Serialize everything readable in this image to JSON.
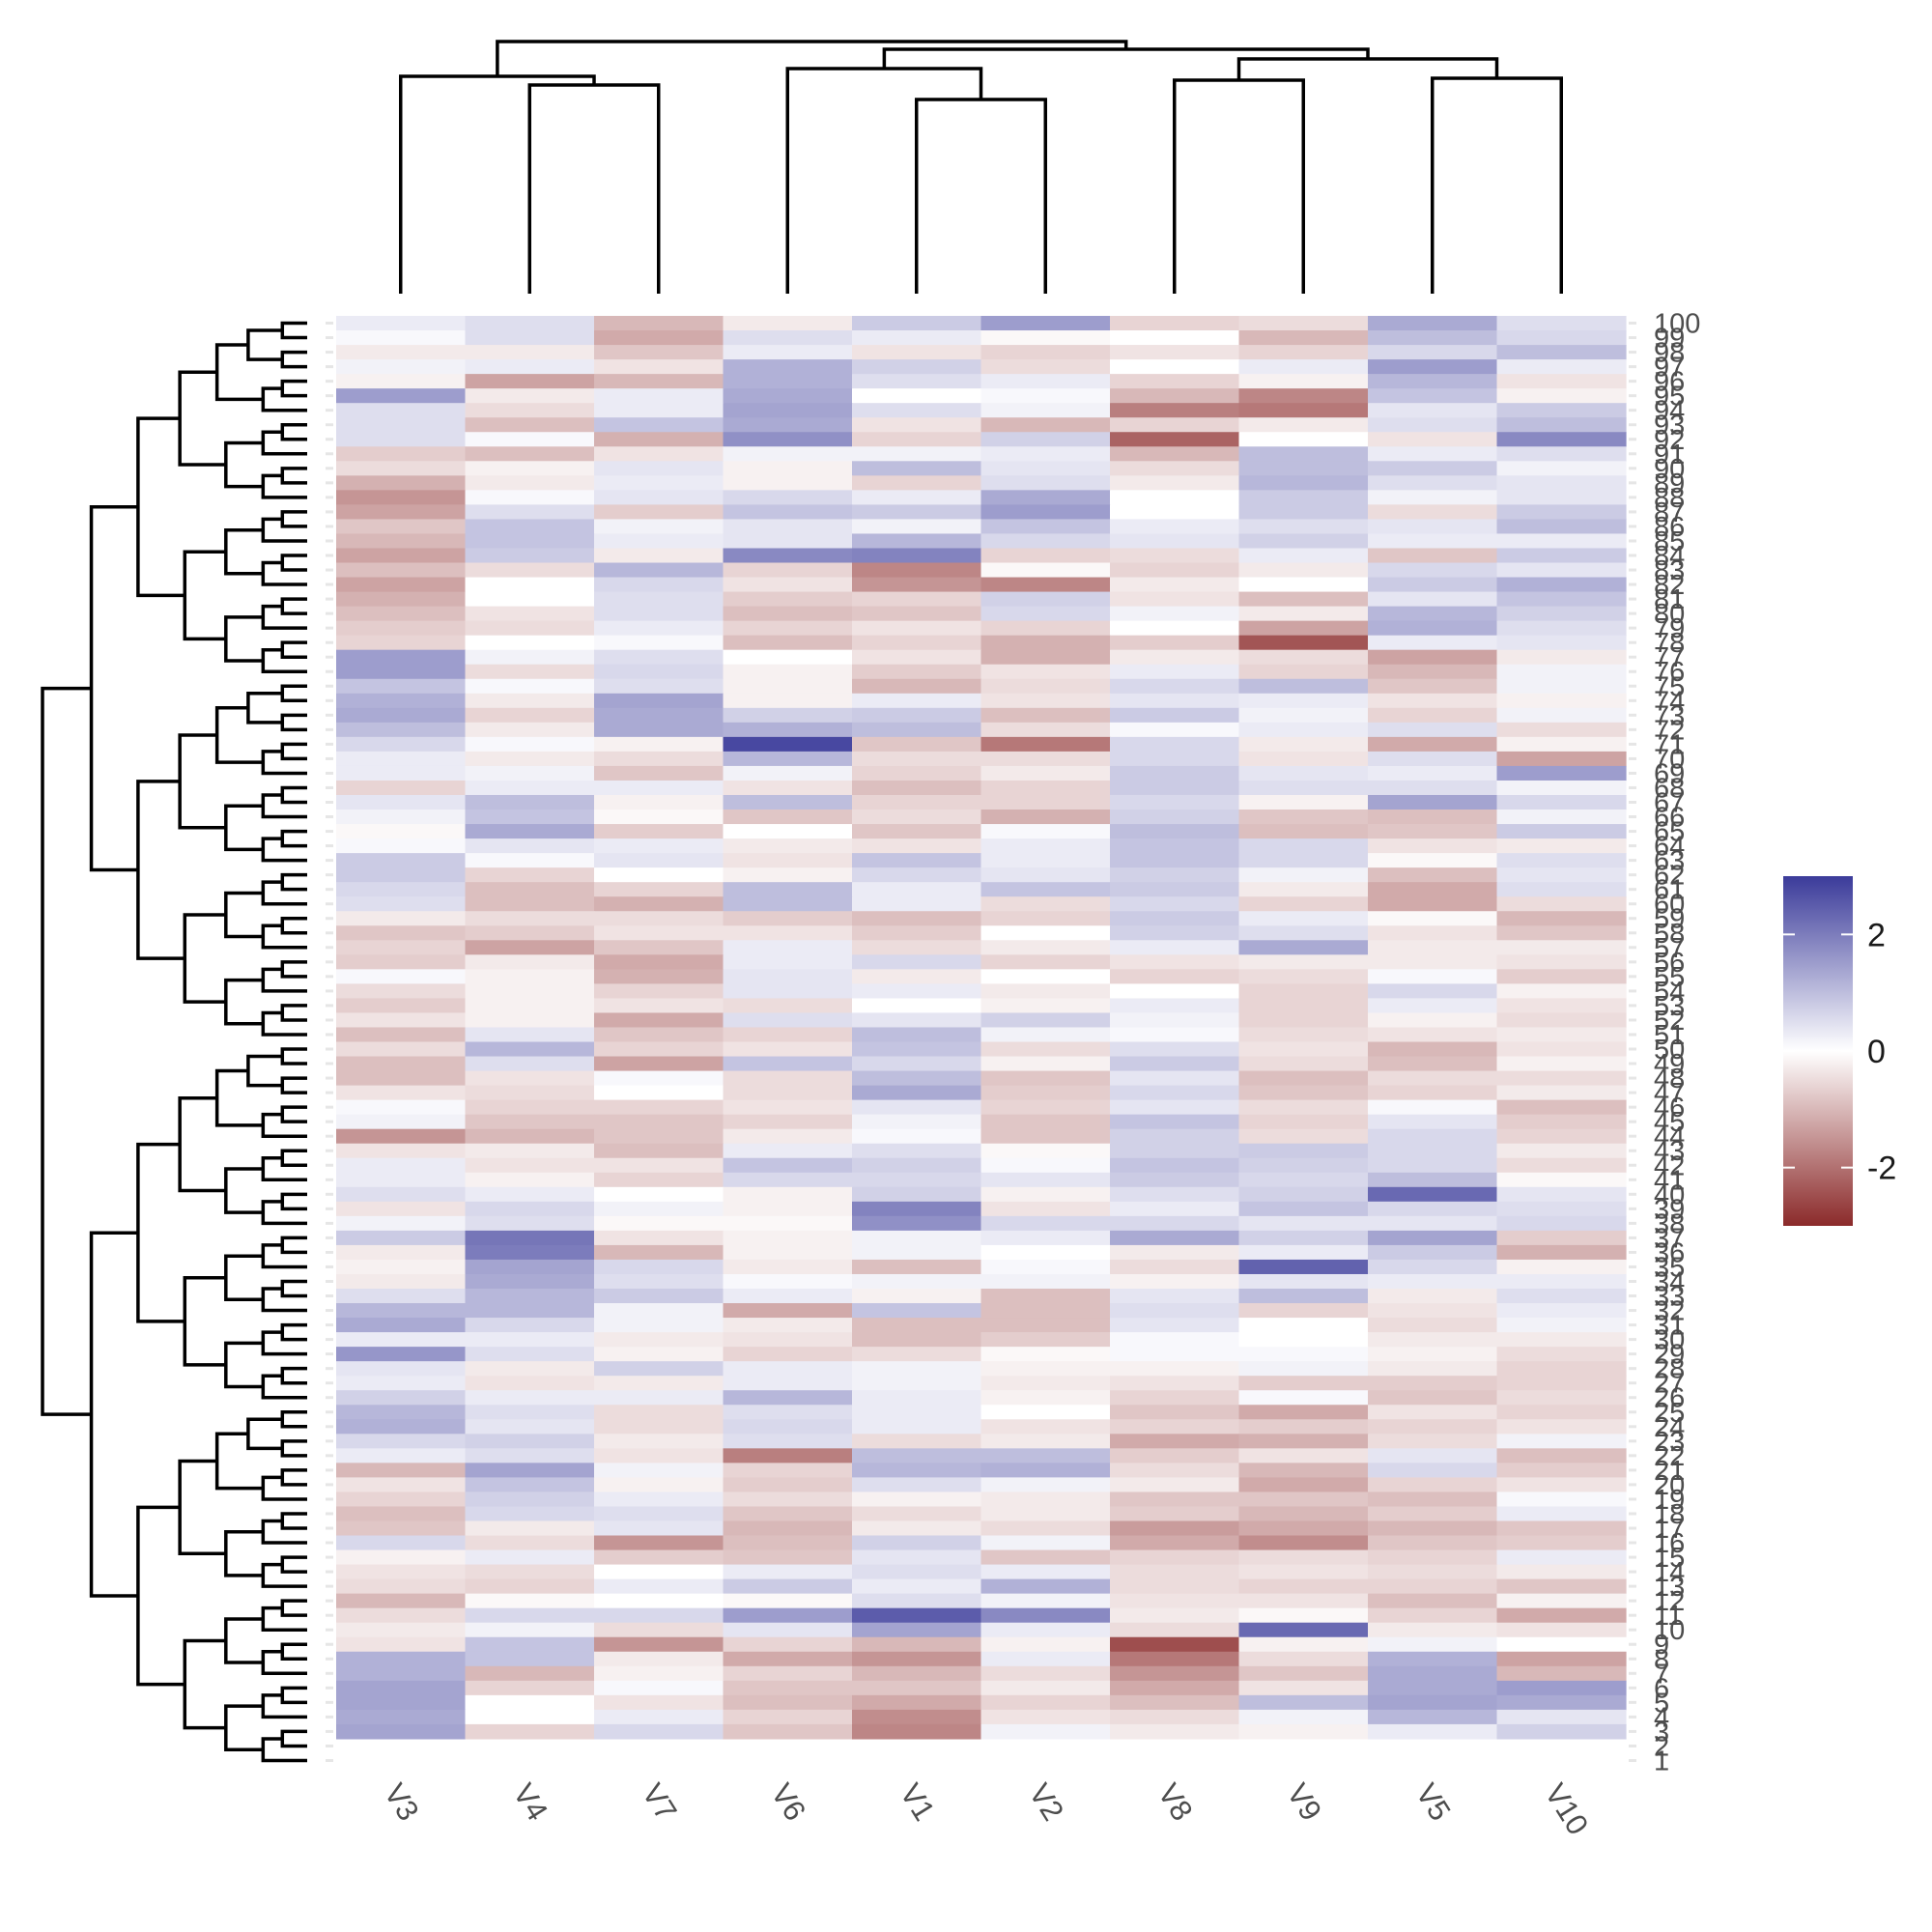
{
  "chart_data": {
    "type": "heatmap",
    "title": "",
    "xlabel": "",
    "ylabel": "",
    "x_order": [
      "V3",
      "V4",
      "V7",
      "V6",
      "V1",
      "V2",
      "V8",
      "V9",
      "V5",
      "V10"
    ],
    "y_order_top_to_bottom": [
      "100",
      "99",
      "98",
      "97",
      "96",
      "95",
      "94",
      "93",
      "92",
      "91",
      "90",
      "89",
      "88",
      "87",
      "86",
      "85",
      "84",
      "83",
      "82",
      "81",
      "80",
      "79",
      "78",
      "77",
      "76",
      "75",
      "74",
      "73",
      "72",
      "71",
      "70",
      "69",
      "68",
      "67",
      "66",
      "65",
      "64",
      "63",
      "62",
      "61",
      "60",
      "59",
      "58",
      "57",
      "56",
      "55",
      "54",
      "53",
      "52",
      "51",
      "50",
      "49",
      "48",
      "47",
      "46",
      "45",
      "44",
      "43",
      "42",
      "41",
      "40",
      "39",
      "38",
      "37",
      "36",
      "35",
      "34",
      "33",
      "32",
      "31",
      "30",
      "29",
      "28",
      "27",
      "26",
      "25",
      "24",
      "23",
      "22",
      "21",
      "20",
      "19",
      "18",
      "17",
      "16",
      "15",
      "14",
      "13",
      "12",
      "11",
      "10",
      "9",
      "8",
      "7",
      "6",
      "5",
      "4",
      "3",
      "2",
      "1"
    ],
    "color_scale": {
      "low_color": "#8b2a2a",
      "mid_color": "#ffffff",
      "high_color": "#3b3b9a",
      "min": -3,
      "mid": 0,
      "max": 3,
      "legend_ticks": [
        2,
        0,
        -2
      ],
      "legend_labels": [
        "2",
        "0",
        "-2"
      ]
    },
    "column_dendrogram": "present (top)",
    "row_dendrogram": "present (left)",
    "grid": false,
    "legend_position": "right",
    "values_note": "cell values estimated from colour; 100 rows x 10 columns",
    "values": [
      [
        0.3,
        0.5,
        -1.0,
        -0.3,
        0.8,
        1.5,
        -0.6,
        -0.5,
        1.3,
        0.5
      ],
      [
        0.1,
        0.5,
        -1.2,
        0.5,
        0.3,
        -0.1,
        0.0,
        -1.0,
        1.0,
        0.6
      ],
      [
        -0.3,
        -0.3,
        -0.8,
        0.3,
        -0.4,
        -0.6,
        -0.4,
        -0.6,
        0.6,
        1.0
      ],
      [
        0.2,
        0.3,
        -0.4,
        1.2,
        0.7,
        -0.5,
        0.0,
        0.3,
        1.5,
        0.3
      ],
      [
        -0.2,
        -1.3,
        -1.0,
        1.2,
        0.5,
        0.3,
        -0.6,
        -0.2,
        1.1,
        -0.4
      ],
      [
        1.5,
        -0.3,
        0.3,
        1.3,
        0.0,
        0.1,
        -1.0,
        -1.7,
        0.9,
        -0.2
      ],
      [
        0.5,
        -0.5,
        0.3,
        1.4,
        0.5,
        0.2,
        -1.8,
        -1.9,
        0.4,
        0.8
      ],
      [
        0.5,
        -0.9,
        0.9,
        1.3,
        -0.4,
        -1.0,
        -0.6,
        -0.3,
        0.5,
        1.0
      ],
      [
        0.5,
        0.1,
        -1.1,
        1.7,
        -0.6,
        0.7,
        -2.2,
        0.0,
        -0.4,
        1.8
      ],
      [
        -0.7,
        -0.9,
        -0.4,
        0.2,
        0.2,
        0.3,
        -1.0,
        1.0,
        0.3,
        0.5
      ],
      [
        -0.5,
        -0.2,
        0.4,
        -0.2,
        1.0,
        0.4,
        -0.5,
        1.0,
        0.8,
        0.2
      ],
      [
        -1.1,
        -0.3,
        0.3,
        -0.2,
        -0.6,
        0.5,
        -0.3,
        1.1,
        0.5,
        0.4
      ],
      [
        -1.5,
        0.1,
        0.4,
        0.6,
        0.3,
        1.3,
        0.0,
        0.8,
        0.2,
        0.4
      ],
      [
        -1.3,
        0.5,
        -0.7,
        0.9,
        0.8,
        1.5,
        0.0,
        0.8,
        -0.5,
        0.8
      ],
      [
        -0.8,
        0.9,
        0.2,
        0.4,
        0.2,
        0.9,
        0.3,
        0.5,
        0.4,
        1.0
      ],
      [
        -1.0,
        0.9,
        0.3,
        0.4,
        1.1,
        0.6,
        0.4,
        0.7,
        0.3,
        0.3
      ],
      [
        -1.3,
        0.8,
        -0.3,
        1.8,
        1.9,
        -0.6,
        -0.5,
        0.3,
        -0.8,
        0.8
      ],
      [
        -0.9,
        -0.5,
        1.1,
        -0.6,
        -1.7,
        -0.1,
        -0.6,
        -0.3,
        0.6,
        0.4
      ],
      [
        -1.3,
        0.0,
        0.6,
        -0.4,
        -1.5,
        -1.7,
        -0.3,
        0.0,
        0.8,
        1.2
      ],
      [
        -1.1,
        0.0,
        0.5,
        -0.7,
        -0.6,
        0.7,
        -0.4,
        -0.9,
        0.4,
        0.9
      ],
      [
        -0.9,
        -0.4,
        0.5,
        -0.9,
        -0.8,
        0.6,
        0.2,
        -0.3,
        1.1,
        0.7
      ],
      [
        -0.7,
        -0.5,
        0.3,
        -0.6,
        -0.4,
        -0.6,
        0.0,
        -1.3,
        1.2,
        0.5
      ],
      [
        -0.6,
        0.0,
        0.1,
        -0.9,
        -0.6,
        -1.1,
        -0.7,
        -2.4,
        0.3,
        0.4
      ],
      [
        1.5,
        0.2,
        0.5,
        0.0,
        -0.4,
        -1.1,
        -0.3,
        -0.5,
        -1.3,
        -0.3
      ],
      [
        1.5,
        -0.5,
        0.6,
        -0.2,
        -0.7,
        -0.4,
        0.3,
        -0.6,
        -1.0,
        0.2
      ],
      [
        0.9,
        0.1,
        0.5,
        -0.2,
        -1.0,
        -0.5,
        0.6,
        1.0,
        -0.8,
        0.2
      ],
      [
        1.2,
        -0.3,
        1.4,
        -0.2,
        0.3,
        -0.4,
        0.4,
        0.3,
        -0.4,
        -0.2
      ],
      [
        1.3,
        -0.6,
        1.3,
        0.7,
        0.8,
        -0.9,
        0.8,
        0.2,
        -0.6,
        0.2
      ],
      [
        1.0,
        -0.3,
        1.3,
        1.2,
        1.0,
        -0.5,
        0.1,
        0.3,
        0.5,
        -0.5
      ],
      [
        0.6,
        0.1,
        -0.2,
        2.8,
        -0.8,
        -1.9,
        0.6,
        -0.3,
        -1.2,
        -0.2
      ],
      [
        0.3,
        -0.3,
        -0.5,
        1.1,
        -0.5,
        -0.5,
        0.6,
        -0.4,
        0.5,
        -1.3
      ],
      [
        0.3,
        0.2,
        -0.8,
        0.2,
        -0.6,
        -0.3,
        0.8,
        0.4,
        0.3,
        1.5
      ],
      [
        -0.6,
        0.3,
        0.3,
        -0.4,
        -0.9,
        -0.6,
        0.8,
        0.5,
        0.5,
        0.2
      ],
      [
        0.4,
        1.0,
        -0.2,
        1.0,
        -0.6,
        -0.6,
        0.6,
        -0.2,
        1.4,
        0.6
      ],
      [
        0.2,
        0.9,
        -0.1,
        -0.8,
        -0.5,
        -1.1,
        0.7,
        -0.8,
        -0.9,
        0.2
      ],
      [
        -0.1,
        1.3,
        -0.7,
        0.0,
        -0.8,
        0.1,
        1.0,
        -0.9,
        -0.8,
        0.8
      ],
      [
        0.1,
        0.4,
        0.3,
        -0.3,
        -0.4,
        0.3,
        0.9,
        0.6,
        -0.4,
        -0.3
      ],
      [
        0.8,
        0.1,
        0.4,
        -0.4,
        0.9,
        0.3,
        0.9,
        0.6,
        -0.1,
        0.5
      ],
      [
        0.8,
        -0.6,
        0.0,
        -0.2,
        0.6,
        0.4,
        0.7,
        0.2,
        -0.9,
        0.4
      ],
      [
        0.6,
        -0.9,
        -0.6,
        1.0,
        0.3,
        0.9,
        0.8,
        -0.3,
        -1.2,
        0.5
      ],
      [
        0.5,
        -0.9,
        -1.1,
        1.0,
        0.3,
        -0.5,
        0.6,
        -0.6,
        -1.2,
        -0.5
      ],
      [
        -0.3,
        -0.5,
        -0.5,
        -0.7,
        -0.9,
        -0.6,
        0.8,
        0.3,
        -0.1,
        -1.0
      ],
      [
        -0.8,
        -0.7,
        -0.4,
        -0.4,
        -0.7,
        0.0,
        0.7,
        0.5,
        -0.4,
        -0.8
      ],
      [
        -0.6,
        -1.3,
        -0.8,
        0.3,
        -0.5,
        -0.3,
        0.3,
        1.3,
        -0.3,
        -0.3
      ],
      [
        -0.7,
        -0.3,
        -1.2,
        0.3,
        0.6,
        -0.6,
        -0.4,
        -0.3,
        -0.3,
        -0.4
      ],
      [
        0.1,
        -0.2,
        -1.1,
        0.4,
        -0.3,
        0.0,
        -0.6,
        -0.5,
        0.1,
        -0.7
      ],
      [
        -0.5,
        -0.2,
        -0.6,
        0.4,
        0.3,
        -0.3,
        0.0,
        -0.6,
        0.6,
        -0.2
      ],
      [
        -0.7,
        -0.2,
        -0.4,
        -0.5,
        0.0,
        -0.2,
        0.3,
        -0.6,
        0.3,
        -0.4
      ],
      [
        -0.4,
        -0.2,
        -1.2,
        0.5,
        0.4,
        0.7,
        0.2,
        -0.6,
        -0.2,
        -0.5
      ],
      [
        -0.9,
        0.4,
        -0.8,
        -0.6,
        1.0,
        0.2,
        0.1,
        -0.5,
        -0.4,
        -0.3
      ],
      [
        -0.5,
        1.1,
        -0.6,
        -0.4,
        0.9,
        -0.5,
        0.5,
        -0.4,
        -1.0,
        -0.4
      ],
      [
        -0.9,
        0.5,
        -1.3,
        0.9,
        0.6,
        -0.2,
        0.8,
        -0.5,
        -0.9,
        -0.2
      ],
      [
        -0.9,
        -0.4,
        0.1,
        -0.5,
        1.0,
        -0.8,
        0.4,
        -0.9,
        -0.5,
        -0.5
      ],
      [
        -0.4,
        -0.5,
        0.0,
        -0.5,
        1.3,
        -0.7,
        0.6,
        -0.8,
        -0.6,
        -0.3
      ],
      [
        0.1,
        -0.6,
        -0.6,
        -0.4,
        0.4,
        -0.6,
        0.4,
        -0.5,
        0.1,
        -0.9
      ],
      [
        0.2,
        -0.8,
        -0.8,
        -0.6,
        0.2,
        -0.8,
        0.9,
        -0.6,
        0.4,
        -0.7
      ],
      [
        -1.5,
        -1.0,
        -0.8,
        -0.3,
        0.1,
        -0.8,
        0.7,
        -0.5,
        0.6,
        -0.6
      ],
      [
        -0.4,
        -0.3,
        -0.9,
        0.3,
        0.5,
        -0.1,
        0.7,
        0.8,
        0.6,
        -0.3
      ],
      [
        0.3,
        -0.4,
        -0.4,
        0.9,
        0.7,
        0.1,
        0.9,
        0.7,
        0.6,
        -0.5
      ],
      [
        0.3,
        -0.2,
        -0.6,
        0.6,
        0.6,
        0.4,
        0.8,
        0.6,
        1.0,
        -0.1
      ],
      [
        0.5,
        0.3,
        0.0,
        -0.2,
        0.7,
        -0.2,
        0.5,
        0.7,
        2.3,
        0.4
      ],
      [
        -0.4,
        0.6,
        0.2,
        -0.2,
        1.9,
        -0.4,
        0.3,
        0.9,
        0.6,
        0.5
      ],
      [
        0.2,
        0.5,
        -0.1,
        -0.1,
        1.7,
        0.6,
        0.6,
        0.4,
        0.4,
        0.6
      ],
      [
        0.8,
        2.1,
        -0.4,
        -0.2,
        0.2,
        0.3,
        1.3,
        0.7,
        1.4,
        -0.7
      ],
      [
        -0.3,
        2.0,
        -1.0,
        -0.2,
        0.2,
        0.0,
        -0.3,
        0.3,
        0.8,
        -1.1
      ],
      [
        -0.2,
        1.4,
        0.6,
        -0.3,
        -0.9,
        0.1,
        -0.5,
        2.4,
        0.6,
        -0.2
      ],
      [
        -0.3,
        1.3,
        0.5,
        0.1,
        0.2,
        0.2,
        -0.2,
        0.4,
        0.3,
        0.3
      ],
      [
        0.5,
        1.1,
        0.8,
        0.3,
        -0.2,
        -0.9,
        0.4,
        1.0,
        -0.3,
        0.5
      ],
      [
        1.1,
        1.1,
        0.2,
        -1.2,
        0.9,
        -0.9,
        0.5,
        -0.6,
        -0.4,
        0.3
      ],
      [
        1.3,
        0.6,
        0.2,
        -0.3,
        -0.9,
        -0.9,
        0.4,
        0.0,
        -0.5,
        0.2
      ],
      [
        0.3,
        0.3,
        -0.3,
        -0.4,
        -0.9,
        -0.7,
        0.1,
        0.0,
        -0.3,
        -0.3
      ],
      [
        1.6,
        0.5,
        -0.2,
        -0.6,
        -0.5,
        -0.1,
        0.1,
        0.1,
        -0.2,
        -0.5
      ],
      [
        0.4,
        -0.3,
        0.7,
        0.3,
        0.2,
        -0.2,
        -0.2,
        0.2,
        -0.3,
        -0.6
      ],
      [
        0.3,
        -0.4,
        -0.3,
        0.3,
        0.2,
        -0.3,
        -0.4,
        -0.7,
        -0.7,
        -0.6
      ],
      [
        0.7,
        0.3,
        0.3,
        1.1,
        0.3,
        -0.2,
        -0.6,
        0.1,
        -0.8,
        -0.5
      ],
      [
        1.1,
        0.5,
        -0.5,
        0.5,
        0.3,
        0.0,
        -0.8,
        -1.2,
        -0.4,
        -0.6
      ],
      [
        1.2,
        0.4,
        -0.5,
        0.6,
        0.3,
        -0.4,
        -0.6,
        -0.7,
        -0.6,
        -0.4
      ],
      [
        0.6,
        0.7,
        -0.3,
        0.5,
        -0.5,
        -0.3,
        -1.2,
        -1.1,
        -0.5,
        0.2
      ],
      [
        0.3,
        0.5,
        -0.4,
        -1.8,
        1.0,
        1.0,
        -0.7,
        -0.4,
        0.4,
        -0.9
      ],
      [
        -1.0,
        1.4,
        0.2,
        -0.6,
        1.1,
        1.2,
        -0.5,
        -1.0,
        0.6,
        -0.7
      ],
      [
        -0.4,
        0.9,
        -0.2,
        -0.7,
        0.5,
        0.2,
        -0.3,
        -1.2,
        -0.6,
        -0.4
      ],
      [
        -0.6,
        0.7,
        0.3,
        -0.5,
        -0.2,
        -0.3,
        -0.8,
        -0.8,
        -0.9,
        0.1
      ],
      [
        -0.9,
        0.6,
        0.5,
        -0.8,
        -0.5,
        -0.3,
        -0.7,
        -1.0,
        -0.7,
        0.3
      ],
      [
        -0.8,
        -0.3,
        0.4,
        -1.0,
        -0.3,
        -0.5,
        -1.4,
        -1.2,
        -1.0,
        -0.8
      ],
      [
        0.6,
        -0.5,
        -1.5,
        -0.9,
        0.7,
        0.2,
        -1.2,
        -1.6,
        -0.8,
        -0.7
      ],
      [
        -0.2,
        0.3,
        -0.7,
        -0.8,
        0.4,
        -0.8,
        -0.6,
        -0.5,
        -0.6,
        0.3
      ],
      [
        -0.4,
        -0.5,
        0.0,
        0.3,
        0.5,
        0.3,
        -0.5,
        -0.4,
        -0.5,
        -0.3
      ],
      [
        -0.5,
        -0.6,
        0.3,
        0.8,
        0.3,
        1.2,
        -0.5,
        -0.6,
        -0.6,
        -0.8
      ],
      [
        -1.0,
        -0.1,
        0.0,
        -0.1,
        0.5,
        0.2,
        -0.4,
        -0.4,
        -0.9,
        -0.2
      ],
      [
        -0.5,
        0.6,
        0.6,
        1.5,
        2.5,
        1.8,
        -0.3,
        -0.1,
        -0.6,
        -1.2
      ],
      [
        -0.3,
        0.2,
        -0.5,
        0.4,
        1.4,
        0.3,
        -0.5,
        2.3,
        -0.3,
        -0.4
      ],
      [
        -0.4,
        0.9,
        -1.5,
        -0.6,
        -1.0,
        -0.2,
        -2.5,
        -0.2,
        0.2,
        0.0
      ],
      [
        1.2,
        0.9,
        -0.3,
        -1.2,
        -1.5,
        0.3,
        -1.9,
        -0.5,
        1.2,
        -1.3
      ],
      [
        1.2,
        -1.0,
        -0.2,
        -0.6,
        -1.0,
        -0.5,
        -1.5,
        -0.8,
        1.3,
        -1.0
      ],
      [
        1.4,
        -0.6,
        0.1,
        -0.8,
        -0.8,
        -0.3,
        -1.2,
        -0.4,
        1.3,
        1.5
      ],
      [
        1.4,
        0.0,
        -0.4,
        -0.9,
        -1.2,
        -0.6,
        -0.9,
        1.0,
        1.4,
        1.3
      ],
      [
        1.3,
        0.0,
        0.3,
        -0.6,
        -1.6,
        -0.4,
        -0.5,
        0.2,
        1.1,
        0.4
      ],
      [
        1.4,
        -0.6,
        0.6,
        -0.8,
        -1.7,
        0.2,
        -0.3,
        -0.2,
        0.3,
        0.7
      ]
    ]
  }
}
